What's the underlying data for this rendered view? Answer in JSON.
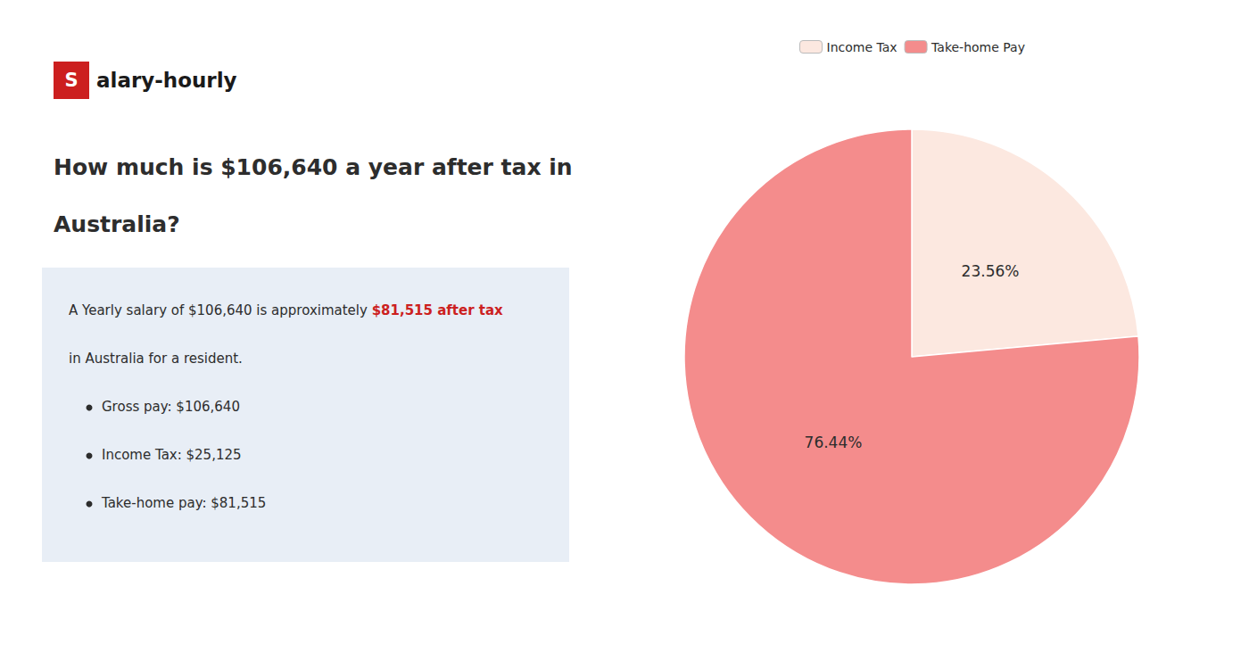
{
  "chart_data": {
    "type": "pie",
    "title": [
      "How much is $106,640 a year after tax in",
      "Australia?"
    ],
    "logo": [
      "S",
      "alary-hourly"
    ],
    "intro": [
      "A Yearly salary of $106,640 is approximately ",
      "$81,515 after tax",
      "in Australia for a resident."
    ],
    "bullets": [
      "Gross pay: $106,640",
      "Income Tax: $25,125",
      "Take-home pay: $81,515"
    ],
    "categories": [
      "Income Tax",
      "Take-home Pay"
    ],
    "values": [
      23.56,
      76.44
    ],
    "value_labels": [
      "23.56%",
      "76.44%"
    ],
    "colors": [
      "#fce8e0",
      "#f48c8c"
    ],
    "data_labels": true,
    "legend": "top"
  }
}
